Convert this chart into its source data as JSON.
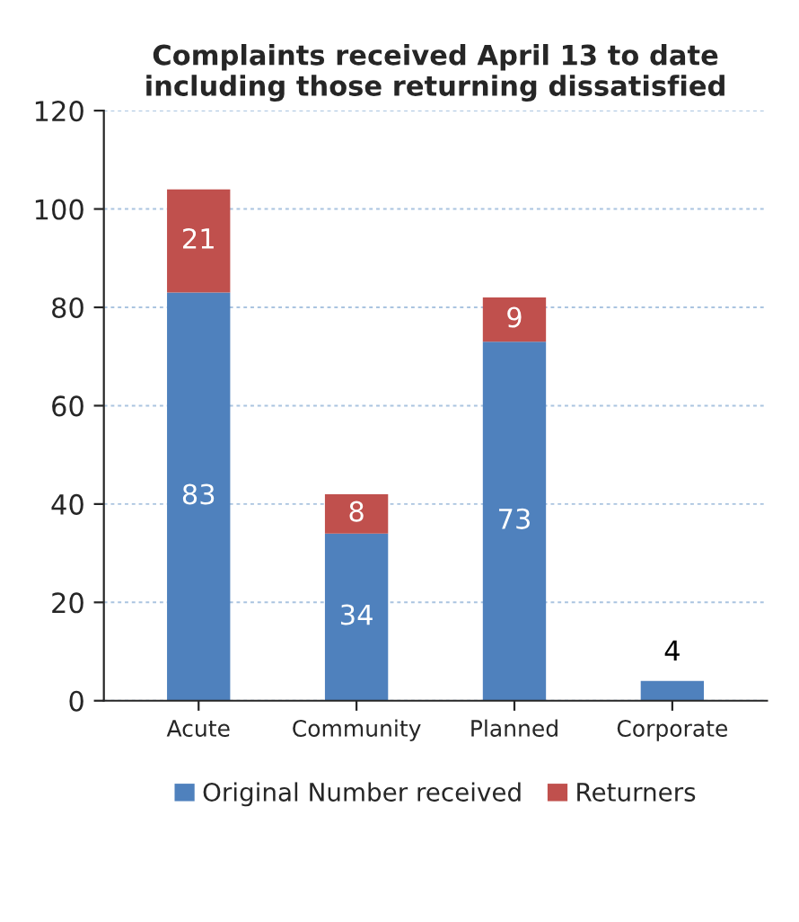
{
  "chart_data": {
    "type": "bar",
    "title": "Complaints received April 13 to date\nincluding those returning dissatisfied",
    "categories": [
      "Acute",
      "Community",
      "Planned",
      "Corporate"
    ],
    "stacked": true,
    "series": [
      {
        "name": "Original Number received",
        "color": "#4f81bd",
        "values": [
          83,
          34,
          73,
          4
        ],
        "value_labels": [
          "83",
          "34",
          "73",
          "4"
        ]
      },
      {
        "name": "Returners",
        "color": "#c0504d",
        "values": [
          21,
          8,
          9,
          null
        ],
        "value_labels": [
          "21",
          "8",
          "9",
          null
        ]
      }
    ],
    "ylim": [
      0,
      120
    ],
    "yticks": [
      0,
      20,
      40,
      60,
      80,
      100,
      120
    ],
    "grid": "y",
    "legend": "bottom"
  }
}
